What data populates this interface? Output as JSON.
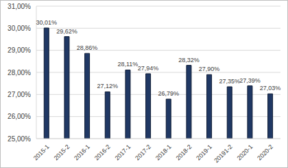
{
  "chart_data": {
    "type": "bar",
    "categories": [
      "2015-1",
      "2015-2",
      "2016-1",
      "2016-2",
      "2017-1",
      "2017-2",
      "2018-1",
      "2018-2",
      "2019-1",
      "20191-2",
      "2020-1",
      "2020-2"
    ],
    "values": [
      30.01,
      29.62,
      28.86,
      27.12,
      28.11,
      27.94,
      26.79,
      28.32,
      27.9,
      27.35,
      27.39,
      27.03
    ],
    "value_labels": [
      "30,01%",
      "29,62%",
      "28,86%",
      "27,12%",
      "28,11%",
      "27,94%",
      "26,79%",
      "28,32%",
      "27,90%",
      "27,35%",
      "27,39%",
      "27,03%"
    ],
    "color": "#203864",
    "ylim": [
      25,
      31
    ],
    "yticks": [
      {
        "value": 25,
        "label": "25,00%"
      },
      {
        "value": 26,
        "label": "26,00%"
      },
      {
        "value": 27,
        "label": "27,00%"
      },
      {
        "value": 28,
        "label": "28,00%"
      },
      {
        "value": 29,
        "label": "29,00%"
      },
      {
        "value": 30,
        "label": "30,00%"
      },
      {
        "value": 31,
        "label": "31,00%"
      }
    ],
    "grid": true,
    "data_labels": true
  }
}
